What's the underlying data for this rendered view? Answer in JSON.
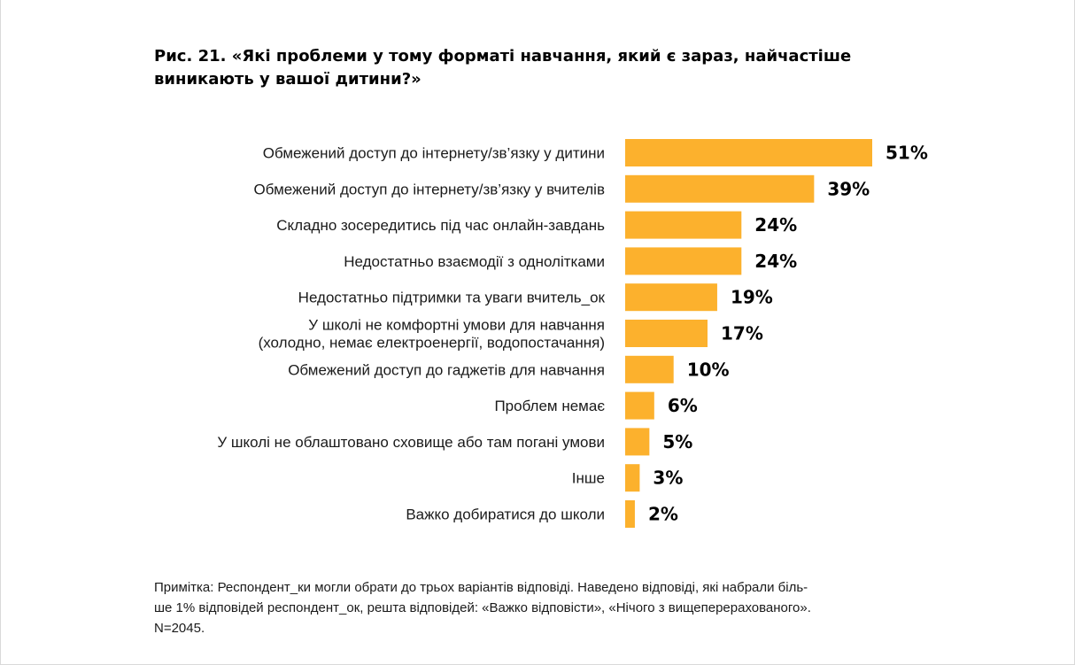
{
  "title": "Рис. 21. «Які проблеми у тому форматі навчання, який є зараз, найчастіше виникають у вашої дитини?»",
  "note_lines": [
    "Примітка: Респондент_ки могли обрати до трьох варіантів відповіді. Наведено відповіді, які набрали біль-",
    "ше 1% відповідей респондент_ок, решта відповідей: «Важко відповісти», «Нічого з вищеперерахованого».",
    "N=2045."
  ],
  "colors": {
    "bar": "#fcb12d"
  },
  "chart_data": {
    "type": "bar",
    "orientation": "horizontal",
    "categories": [
      [
        "Обмежений доступ до інтернету/зв’язку у дитини"
      ],
      [
        "Обмежений доступ до інтернету/зв’язку у вчителів"
      ],
      [
        "Складно зосередитись під час онлайн-завдань"
      ],
      [
        "Недостатньо взаємодії з однолітками"
      ],
      [
        "Недостатньо підтримки та уваги вчитель_ок"
      ],
      [
        "У школі не комфортні умови для навчання",
        "(холодно, немає електроенергії, водопостачання)"
      ],
      [
        "Обмежений доступ до гаджетів для навчання"
      ],
      [
        "Проблем немає"
      ],
      [
        "У школі не облаштовано сховище або там погані умови"
      ],
      [
        "Інше"
      ],
      [
        "Важко добиратися до школи"
      ]
    ],
    "values": [
      51,
      39,
      24,
      24,
      19,
      17,
      10,
      6,
      5,
      3,
      2
    ],
    "value_labels": [
      "51%",
      "39%",
      "24%",
      "24%",
      "19%",
      "17%",
      "10%",
      "6%",
      "5%",
      "3%",
      "2%"
    ],
    "xlim": [
      0,
      51
    ],
    "grid": false,
    "legend": "none"
  }
}
